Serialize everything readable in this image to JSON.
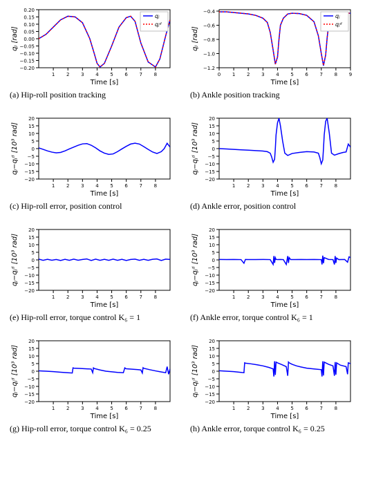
{
  "global": {
    "xlabel": "Time [s]",
    "xlabel_fontsize": 10,
    "xlabel_fontcolor": "#000000",
    "tick_font_family": "DejaVu Sans, Arial, sans-serif",
    "tick_fontcolor": "#000000",
    "frame_color": "#000000",
    "background_color": "#ffffff"
  },
  "panels": {
    "a": {
      "type": "line",
      "title_caption": "(a) Hip-roll position tracking",
      "ylabel": "qⱼ [rad]",
      "ylabel_fontsize": 10,
      "xlim": [
        0,
        9
      ],
      "ylim": [
        -0.2,
        0.2
      ],
      "xticks": [
        1,
        2,
        3,
        4,
        5,
        6,
        7,
        8
      ],
      "yticks": [
        -0.2,
        -0.15,
        -0.1,
        -0.05,
        0.0,
        0.05,
        0.1,
        0.15,
        0.2
      ],
      "ytick_labels": [
        "−0.20",
        "−0.15",
        "−0.10",
        "−0.05",
        "0.00",
        "0.05",
        "0.10",
        "0.15",
        "0.20"
      ],
      "tick_fontsize": 7,
      "series": [
        {
          "name": "qj",
          "color": "#0000ff",
          "linestyle": "solid",
          "linewidth": 1.5,
          "x": [
            0.0,
            0.5,
            1.0,
            1.5,
            2.0,
            2.5,
            3.0,
            3.5,
            3.8,
            4.0,
            4.2,
            4.5,
            5.0,
            5.5,
            6.0,
            6.3,
            6.6,
            7.0,
            7.5,
            8.0,
            8.3,
            8.7,
            9.0
          ],
          "y": [
            0.0,
            0.03,
            0.08,
            0.13,
            0.155,
            0.15,
            0.11,
            0.0,
            -0.1,
            -0.17,
            -0.195,
            -0.17,
            -0.05,
            0.08,
            0.145,
            0.155,
            0.12,
            -0.03,
            -0.16,
            -0.195,
            -0.14,
            0.02,
            0.13
          ]
        },
        {
          "name": "qj_d",
          "color": "#ff0000",
          "linestyle": "dotted",
          "linewidth": 1.5,
          "x": [
            0.0,
            0.5,
            1.0,
            1.5,
            2.0,
            2.5,
            3.0,
            3.5,
            3.8,
            4.0,
            4.2,
            4.5,
            5.0,
            5.5,
            6.0,
            6.3,
            6.6,
            7.0,
            7.5,
            8.0,
            8.3,
            8.7,
            9.0
          ],
          "y": [
            0.0,
            0.03,
            0.08,
            0.13,
            0.155,
            0.15,
            0.11,
            0.0,
            -0.1,
            -0.17,
            -0.195,
            -0.17,
            -0.05,
            0.08,
            0.145,
            0.155,
            0.12,
            -0.03,
            -0.16,
            -0.195,
            -0.14,
            0.02,
            0.13
          ]
        }
      ],
      "legend": {
        "labels": [
          "qⱼ",
          "qⱼᵈ"
        ],
        "position": "upper-right"
      }
    },
    "b": {
      "type": "line",
      "title_caption": "(b) Ankle position tracking",
      "ylabel": "qⱼ [rad]",
      "ylabel_fontsize": 10,
      "xlim": [
        0,
        9
      ],
      "ylim": [
        -1.2,
        -0.38
      ],
      "xticks": [
        0,
        1,
        2,
        3,
        4,
        5,
        6,
        7,
        8,
        9
      ],
      "yticks": [
        -1.2,
        -1.0,
        -0.8,
        -0.6,
        -0.4
      ],
      "ytick_labels": [
        "−1.2",
        "−1.0",
        "−0.8",
        "−0.6",
        "−0.4"
      ],
      "tick_fontsize": 7,
      "series": [
        {
          "name": "qj",
          "color": "#0000ff",
          "linestyle": "solid",
          "linewidth": 1.5,
          "x": [
            0.0,
            0.5,
            1.0,
            1.5,
            2.0,
            2.5,
            3.0,
            3.3,
            3.5,
            3.7,
            3.85,
            4.0,
            4.1,
            4.2,
            4.4,
            4.7,
            5.0,
            5.5,
            6.0,
            6.5,
            6.8,
            7.0,
            7.15,
            7.3,
            7.4,
            7.5,
            7.7,
            8.0,
            8.5,
            9.0
          ],
          "y": [
            -0.41,
            -0.41,
            -0.42,
            -0.43,
            -0.44,
            -0.46,
            -0.5,
            -0.56,
            -0.7,
            -0.95,
            -1.15,
            -1.05,
            -0.8,
            -0.6,
            -0.5,
            -0.44,
            -0.43,
            -0.435,
            -0.46,
            -0.55,
            -0.75,
            -1.0,
            -1.17,
            -1.02,
            -0.78,
            -0.6,
            -0.5,
            -0.45,
            -0.43,
            -0.43
          ]
        },
        {
          "name": "qj_d",
          "color": "#ff0000",
          "linestyle": "dotted",
          "linewidth": 1.5,
          "x": [
            0.0,
            0.5,
            1.0,
            1.5,
            2.0,
            2.5,
            3.0,
            3.3,
            3.5,
            3.7,
            3.85,
            4.0,
            4.1,
            4.2,
            4.4,
            4.7,
            5.0,
            5.5,
            6.0,
            6.5,
            6.8,
            7.0,
            7.15,
            7.3,
            7.4,
            7.5,
            7.7,
            8.0,
            8.5,
            9.0
          ],
          "y": [
            -0.41,
            -0.41,
            -0.42,
            -0.43,
            -0.44,
            -0.46,
            -0.5,
            -0.56,
            -0.7,
            -0.95,
            -1.15,
            -1.05,
            -0.8,
            -0.6,
            -0.5,
            -0.44,
            -0.43,
            -0.435,
            -0.46,
            -0.55,
            -0.75,
            -1.0,
            -1.17,
            -1.02,
            -0.78,
            -0.6,
            -0.5,
            -0.45,
            -0.43,
            -0.43
          ]
        }
      ],
      "legend": {
        "labels": [
          "qⱼ",
          "qⱼᵈ"
        ],
        "position": "upper-right"
      }
    },
    "c": {
      "type": "line",
      "title_caption": "(c) Hip-roll error, position control",
      "ylabel": "qⱼ−qⱼᵈ  [10³ rad]",
      "ylabel_fontsize": 10,
      "xlim": [
        0,
        9
      ],
      "ylim": [
        -20,
        20
      ],
      "xticks": [
        1,
        2,
        3,
        4,
        5,
        6,
        7,
        8
      ],
      "yticks": [
        -20,
        -15,
        -10,
        -5,
        0,
        5,
        10,
        15,
        20
      ],
      "ytick_labels": [
        "−20",
        "−15",
        "−10",
        "−5",
        "0",
        "5",
        "10",
        "15",
        "20"
      ],
      "tick_fontsize": 7,
      "line_color": "#0000ff",
      "linewidth": 1.5,
      "series": [
        {
          "name": "err",
          "color": "#0000ff",
          "linestyle": "solid",
          "linewidth": 1.5,
          "x": [
            0.0,
            0.3,
            0.6,
            0.9,
            1.2,
            1.5,
            1.8,
            2.1,
            2.4,
            2.7,
            3.0,
            3.3,
            3.6,
            3.9,
            4.2,
            4.5,
            4.8,
            5.1,
            5.4,
            5.7,
            6.0,
            6.3,
            6.6,
            6.9,
            7.2,
            7.5,
            7.8,
            8.1,
            8.4,
            8.6,
            8.8,
            9.0
          ],
          "y": [
            0.5,
            -0.5,
            -1.5,
            -2.3,
            -2.8,
            -2.5,
            -1.5,
            -0.2,
            1.0,
            2.2,
            3.1,
            3.3,
            2.2,
            0.5,
            -1.5,
            -3.0,
            -3.8,
            -3.5,
            -2.0,
            -0.2,
            1.5,
            3.0,
            3.6,
            3.0,
            1.3,
            -0.5,
            -2.2,
            -3.2,
            -2.0,
            0.0,
            3.5,
            1.0
          ]
        }
      ]
    },
    "d": {
      "type": "line",
      "title_caption": "(d) Ankle error, position control",
      "ylabel": "qⱼ−qⱼᵈ  [10³ rad]",
      "ylabel_fontsize": 10,
      "xlim": [
        0,
        9
      ],
      "ylim": [
        -20,
        20
      ],
      "xticks": [
        1,
        2,
        3,
        4,
        5,
        6,
        7,
        8
      ],
      "yticks": [
        -20,
        -15,
        -10,
        -5,
        0,
        5,
        10,
        15,
        20
      ],
      "ytick_labels": [
        "−20",
        "−15",
        "−10",
        "−5",
        "0",
        "5",
        "10",
        "15",
        "20"
      ],
      "tick_fontsize": 7,
      "series": [
        {
          "name": "err",
          "color": "#0000ff",
          "linestyle": "solid",
          "linewidth": 1.5,
          "x": [
            0.0,
            0.5,
            1.0,
            1.5,
            2.0,
            2.5,
            3.0,
            3.3,
            3.5,
            3.6,
            3.7,
            3.8,
            3.85,
            3.9,
            4.0,
            4.1,
            4.2,
            4.35,
            4.5,
            4.7,
            5.0,
            5.5,
            6.0,
            6.5,
            6.8,
            6.9,
            7.0,
            7.1,
            7.15,
            7.2,
            7.3,
            7.4,
            7.55,
            7.7,
            7.9,
            8.2,
            8.5,
            8.7,
            8.85,
            9.0
          ],
          "y": [
            0.0,
            -0.2,
            -0.5,
            -0.8,
            -1.0,
            -1.3,
            -1.6,
            -2.0,
            -3.0,
            -5.5,
            -9.0,
            -7.0,
            0.0,
            9.0,
            17.0,
            20.0,
            15.0,
            5.0,
            -3.0,
            -4.5,
            -3.2,
            -2.5,
            -2.0,
            -2.2,
            -3.0,
            -6.0,
            -10.0,
            -7.5,
            0.0,
            9.0,
            18.0,
            20.0,
            10.0,
            -3.0,
            -4.3,
            -3.3,
            -2.5,
            -2.2,
            3.0,
            1.0
          ]
        }
      ]
    },
    "e": {
      "type": "line",
      "title_caption": "(e) Hip-roll error, torque control K₆ = 1",
      "ylabel": "qⱼ−qⱼᵈ  [10³ rad]",
      "ylabel_fontsize": 10,
      "xlim": [
        0,
        9
      ],
      "ylim": [
        -20,
        20
      ],
      "xticks": [
        1,
        2,
        3,
        4,
        5,
        6,
        7,
        8
      ],
      "yticks": [
        -20,
        -15,
        -10,
        -5,
        0,
        5,
        10,
        15,
        20
      ],
      "ytick_labels": [
        "−20",
        "−15",
        "−10",
        "−5",
        "0",
        "5",
        "10",
        "15",
        "20"
      ],
      "tick_fontsize": 7,
      "series": [
        {
          "name": "err",
          "color": "#0000ff",
          "linestyle": "solid",
          "linewidth": 1.5,
          "x": [
            0.0,
            0.3,
            0.6,
            0.9,
            1.2,
            1.5,
            1.8,
            2.1,
            2.4,
            2.7,
            3.0,
            3.3,
            3.6,
            3.9,
            4.2,
            4.5,
            4.8,
            5.1,
            5.4,
            5.7,
            6.0,
            6.3,
            6.6,
            6.9,
            7.2,
            7.5,
            7.8,
            8.1,
            8.4,
            8.7,
            9.0
          ],
          "y": [
            0.5,
            -0.3,
            0.4,
            -0.2,
            0.3,
            -0.4,
            0.4,
            -0.3,
            0.5,
            -0.2,
            0.3,
            0.6,
            -0.4,
            0.5,
            -0.3,
            0.4,
            -0.3,
            0.5,
            -0.3,
            0.4,
            -0.4,
            0.3,
            0.5,
            -0.3,
            0.4,
            -0.3,
            0.4,
            0.6,
            -0.4,
            0.5,
            0.3
          ]
        }
      ]
    },
    "f": {
      "type": "line",
      "title_caption": "(f) Ankle error, torque control K₆ = 1",
      "ylabel": "qⱼ−qⱼᵈ  [10³ rad]",
      "ylabel_fontsize": 10,
      "xlim": [
        0,
        9
      ],
      "ylim": [
        -20,
        20
      ],
      "xticks": [
        1,
        2,
        3,
        4,
        5,
        6,
        7,
        8
      ],
      "yticks": [
        -20,
        -15,
        -10,
        -5,
        0,
        5,
        10,
        15,
        20
      ],
      "ytick_labels": [
        "−20",
        "−15",
        "−10",
        "−5",
        "0",
        "5",
        "10",
        "15",
        "20"
      ],
      "tick_fontsize": 7,
      "series": [
        {
          "name": "err",
          "color": "#0000ff",
          "linestyle": "solid",
          "linewidth": 1.5,
          "x": [
            0.0,
            0.5,
            1.0,
            1.5,
            1.7,
            1.8,
            2.0,
            2.5,
            3.0,
            3.5,
            3.7,
            3.75,
            3.8,
            3.85,
            3.9,
            4.0,
            4.2,
            4.4,
            4.6,
            4.7,
            4.75,
            4.8,
            4.9,
            5.2,
            5.6,
            6.0,
            6.5,
            7.0,
            7.05,
            7.1,
            7.15,
            7.2,
            7.5,
            7.8,
            7.9,
            7.95,
            8.0,
            8.05,
            8.2,
            8.6,
            8.8,
            8.9,
            9.0
          ],
          "y": [
            0.3,
            0.2,
            0.3,
            0.2,
            -2.2,
            0.3,
            0.2,
            0.2,
            0.3,
            0.2,
            -3.0,
            2.5,
            -2.0,
            1.5,
            0.3,
            0.2,
            0.3,
            0.2,
            -3.0,
            2.5,
            -2.0,
            1.5,
            0.2,
            0.2,
            0.3,
            0.2,
            0.3,
            0.2,
            -3.0,
            2.8,
            -2.2,
            1.5,
            0.3,
            0.2,
            -3.0,
            2.5,
            -2.0,
            1.2,
            0.2,
            0.3,
            -1.5,
            2.0,
            1.5
          ]
        }
      ]
    },
    "g": {
      "type": "line",
      "title_caption": "(g) Hip-roll error, torque control K₆ = 0.25",
      "ylabel": "qⱼ−qⱼᵈ  [10³ rad]",
      "ylabel_fontsize": 10,
      "xlim": [
        0,
        9
      ],
      "ylim": [
        -20,
        20
      ],
      "xticks": [
        1,
        2,
        3,
        4,
        5,
        6,
        7,
        8
      ],
      "yticks": [
        -20,
        -15,
        -10,
        -5,
        0,
        5,
        10,
        15,
        20
      ],
      "ytick_labels": [
        "−20",
        "−15",
        "−10",
        "−5",
        "0",
        "5",
        "10",
        "15",
        "20"
      ],
      "tick_fontsize": 7,
      "series": [
        {
          "name": "err",
          "color": "#0000ff",
          "linestyle": "solid",
          "linewidth": 1.5,
          "x": [
            0.0,
            0.5,
            1.0,
            1.5,
            2.0,
            2.3,
            2.35,
            2.4,
            2.8,
            3.2,
            3.6,
            3.7,
            3.75,
            3.8,
            4.2,
            4.6,
            5.0,
            5.4,
            5.8,
            5.9,
            5.95,
            6.0,
            6.4,
            6.8,
            7.0,
            7.1,
            7.15,
            7.2,
            7.6,
            8.0,
            8.4,
            8.7,
            8.8,
            8.9,
            9.0
          ],
          "y": [
            0.2,
            0.0,
            -0.3,
            -0.7,
            -1.0,
            -1.2,
            2.2,
            2.0,
            1.8,
            1.6,
            1.4,
            -1.0,
            2.2,
            1.8,
            0.8,
            0.0,
            -0.4,
            -0.8,
            -1.0,
            2.2,
            1.8,
            1.6,
            1.3,
            1.0,
            0.8,
            -1.2,
            2.3,
            1.9,
            1.0,
            0.2,
            -0.5,
            -1.0,
            3.0,
            -2.0,
            1.5
          ]
        }
      ]
    },
    "h": {
      "type": "line",
      "title_caption": "(h) Ankle error, torque control K₆ = 0.25",
      "ylabel": "qⱼ−qⱼᵈ  [10³ rad]",
      "ylabel_fontsize": 10,
      "xlim": [
        0,
        9
      ],
      "ylim": [
        -20,
        20
      ],
      "xticks": [
        1,
        2,
        3,
        4,
        5,
        6,
        7,
        8
      ],
      "yticks": [
        -20,
        -15,
        -10,
        -5,
        0,
        5,
        10,
        15,
        20
      ],
      "ytick_labels": [
        "−20",
        "−15",
        "−10",
        "−5",
        "0",
        "5",
        "10",
        "15",
        "20"
      ],
      "tick_fontsize": 7,
      "series": [
        {
          "name": "err",
          "color": "#0000ff",
          "linestyle": "solid",
          "linewidth": 1.5,
          "x": [
            0.0,
            0.5,
            1.0,
            1.5,
            1.7,
            1.75,
            1.8,
            2.2,
            2.6,
            3.0,
            3.4,
            3.7,
            3.75,
            3.8,
            3.85,
            3.9,
            4.0,
            4.3,
            4.6,
            4.7,
            4.75,
            4.8,
            5.0,
            5.3,
            5.6,
            6.0,
            6.5,
            7.0,
            7.05,
            7.1,
            7.15,
            7.2,
            7.3,
            7.5,
            7.8,
            7.9,
            7.95,
            8.0,
            8.05,
            8.3,
            8.7,
            8.8,
            8.85,
            9.0
          ],
          "y": [
            0.3,
            0.0,
            -0.3,
            -0.8,
            -1.0,
            5.5,
            5.3,
            4.8,
            4.2,
            3.5,
            2.5,
            1.5,
            -3.5,
            6.5,
            -2.5,
            6.0,
            5.5,
            4.3,
            3.0,
            -3.0,
            6.0,
            5.5,
            4.5,
            3.5,
            2.8,
            2.0,
            1.5,
            1.0,
            -3.5,
            6.5,
            -2.8,
            6.0,
            5.5,
            4.5,
            3.5,
            -3.0,
            6.0,
            -2.3,
            5.5,
            4.0,
            3.0,
            -2.0,
            5.5,
            5.0
          ]
        }
      ]
    }
  }
}
